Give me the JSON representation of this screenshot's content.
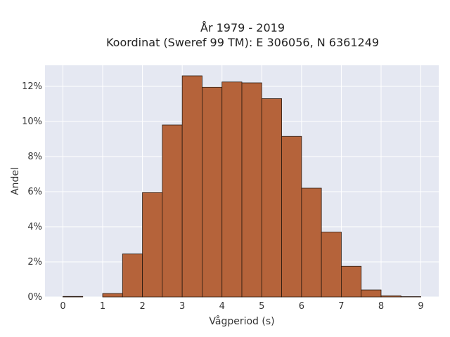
{
  "chart_data": {
    "type": "bar",
    "title_line1": "År 1979 - 2019",
    "title_line2": "Koordinat (Sweref 99 TM): E 306056, N 6361249",
    "xlabel": "Vågperiod (s)",
    "ylabel": "Andel",
    "x_ticks": [
      "0",
      "1",
      "2",
      "3",
      "4",
      "5",
      "6",
      "7",
      "8",
      "9"
    ],
    "y_ticks": [
      "0%",
      "2%",
      "4%",
      "6%",
      "8%",
      "10%",
      "12%"
    ],
    "xlim": [
      -0.45,
      9.45
    ],
    "ylim": [
      0,
      13.2
    ],
    "bin_width": 0.5,
    "bins": [
      {
        "start": 0.0,
        "value": 0.03
      },
      {
        "start": 0.5,
        "value": 0.0
      },
      {
        "start": 1.0,
        "value": 0.2
      },
      {
        "start": 1.5,
        "value": 2.45
      },
      {
        "start": 2.0,
        "value": 5.95
      },
      {
        "start": 2.5,
        "value": 9.8
      },
      {
        "start": 3.0,
        "value": 12.6
      },
      {
        "start": 3.5,
        "value": 11.95
      },
      {
        "start": 4.0,
        "value": 12.25
      },
      {
        "start": 4.5,
        "value": 12.2
      },
      {
        "start": 5.0,
        "value": 11.3
      },
      {
        "start": 5.5,
        "value": 9.15
      },
      {
        "start": 6.0,
        "value": 6.2
      },
      {
        "start": 6.5,
        "value": 3.7
      },
      {
        "start": 7.0,
        "value": 1.75
      },
      {
        "start": 7.5,
        "value": 0.4
      },
      {
        "start": 8.0,
        "value": 0.07
      },
      {
        "start": 8.5,
        "value": 0.02
      }
    ],
    "grid": true,
    "colors": {
      "bar": "#b5633a",
      "plot_background": "#e5e8f2",
      "grid": "#ffffff"
    }
  }
}
